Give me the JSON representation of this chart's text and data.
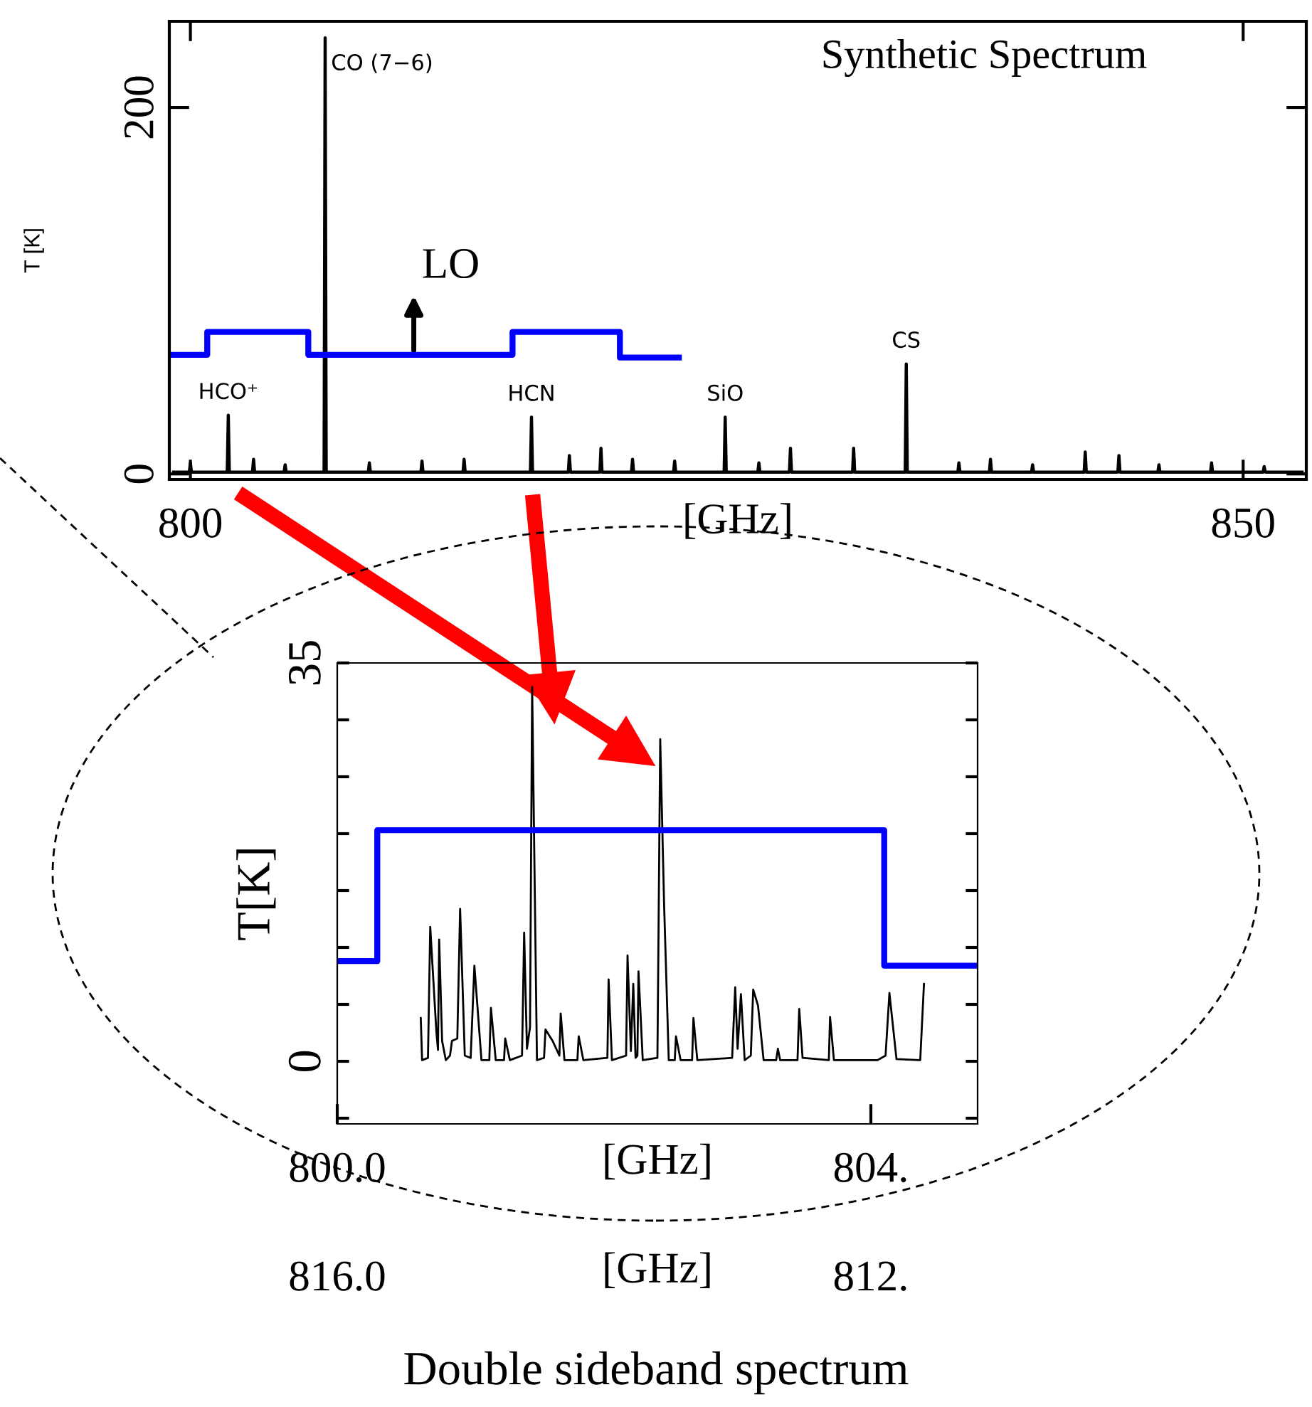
{
  "chart_data": [
    {
      "type": "line",
      "title": "Synthetic Spectrum",
      "xlabel": "[GHz]",
      "ylabel": "T [K]",
      "series": [
        {
          "color": "#000000",
          "x": [
            799.2,
            799.95,
            800.0,
            800.05,
            801.75,
            801.8,
            801.85,
            802.95,
            803.0,
            803.05,
            804.45,
            804.5,
            804.55,
            806.35,
            806.4,
            806.45,
            808.45,
            808.5,
            808.55,
            810.95,
            811.0,
            811.05,
            812.95,
            813.0,
            813.05,
            816.15,
            816.2,
            816.25,
            817.95,
            818.0,
            818.05,
            819.45,
            819.5,
            819.55,
            820.95,
            821.0,
            821.05,
            822.95,
            823.0,
            823.05,
            825.35,
            825.4,
            825.45,
            826.95,
            827.0,
            827.05,
            828.45,
            828.5,
            828.55,
            831.45,
            831.5,
            831.55,
            833.95,
            834.0,
            834.05,
            836.45,
            836.5,
            836.55,
            837.95,
            838.0,
            838.05,
            839.95,
            840.0,
            840.05,
            842.45,
            842.5,
            842.55,
            844.05,
            844.1,
            844.15,
            845.95,
            846.0,
            846.05,
            848.45,
            848.5,
            848.55,
            850.95,
            851.0,
            851.05,
            852.8
          ],
          "values": [
            1,
            1,
            6,
            1,
            1,
            32,
            1,
            1,
            8,
            1,
            1,
            5,
            1,
            1,
            238,
            1,
            1,
            6,
            1,
            1,
            7,
            1,
            1,
            8,
            1,
            1,
            31,
            1,
            1,
            10,
            1,
            1,
            14,
            1,
            1,
            8,
            1,
            1,
            7,
            1,
            1,
            31,
            1,
            1,
            6,
            1,
            1,
            14,
            1,
            1,
            14,
            1,
            1,
            60,
            1,
            1,
            6,
            1,
            1,
            8,
            1,
            1,
            5,
            1,
            1,
            12,
            1,
            1,
            10,
            1,
            1,
            5,
            1,
            1,
            6,
            1,
            1,
            4,
            1,
            1
          ]
        },
        {
          "type": "step",
          "color": "#0000ff",
          "x": [
            799.1,
            800.8,
            805.6,
            815.3,
            820.4,
            823.2
          ],
          "values": [
            65,
            77.5,
            65,
            77.5,
            63.5,
            63.5
          ]
        }
      ],
      "xlim": [
        799,
        853
      ],
      "xticks": [
        800,
        850
      ],
      "ylim": [
        -3,
        247
      ],
      "yticks": [
        0,
        200
      ],
      "annotations": [
        {
          "text": "CO (7−6)",
          "x": 806.4,
          "y": 238
        },
        {
          "text": "HCO⁺",
          "x": 801.8,
          "y": 32
        },
        {
          "text": "HCN",
          "x": 816.2,
          "y": 31
        },
        {
          "text": "SiO",
          "x": 825.4,
          "y": 31
        },
        {
          "text": "CS",
          "x": 834.0,
          "y": 60
        },
        "LO"
      ],
      "legend": false,
      "grid": false
    },
    {
      "type": "line",
      "title": "Double sideband spectrum",
      "xlabel": "[GHz]",
      "x2label": "[GHz]",
      "ylabel": "T[K]",
      "series": [
        {
          "color": "#000000",
          "x": [
            800.626,
            800.636,
            800.68,
            800.697,
            800.743,
            800.755,
            800.764,
            800.786,
            800.814,
            800.845,
            800.86,
            800.9,
            800.921,
            800.956,
            801.0,
            801.028,
            801.081,
            801.14,
            801.152,
            801.188,
            801.25,
            801.259,
            801.294,
            801.385,
            801.401,
            801.422,
            801.445,
            801.461,
            801.497,
            801.55,
            801.561,
            801.614,
            801.665,
            801.675,
            801.703,
            801.8,
            801.81,
            801.845,
            802.025,
            802.034,
            802.059,
            802.165,
            802.176,
            802.201,
            802.219,
            802.236,
            802.25,
            802.258,
            802.29,
            802.4,
            802.421,
            802.45,
            802.485,
            802.53,
            802.539,
            802.574,
            802.66,
            802.67,
            802.699,
            802.96,
            802.983,
            803.001,
            803.026,
            803.054,
            803.1,
            803.118,
            803.154,
            803.196,
            803.29,
            803.303,
            803.32,
            803.45,
            803.463,
            803.488,
            803.685,
            803.694,
            803.723,
            804.05,
            804.11,
            804.139,
            804.192,
            804.37,
            804.398
          ],
          "values": [
            3.8,
            0.1,
            0.3,
            11.8,
            2.6,
            1.0,
            10.7,
            1.8,
            0.1,
            0.5,
            1.8,
            2.0,
            13.4,
            0.5,
            0.3,
            8.4,
            0.1,
            0.1,
            4.7,
            0.1,
            0.1,
            2.0,
            0.1,
            0.5,
            11.3,
            1.1,
            3.0,
            32.9,
            0.1,
            0.3,
            2.8,
            1.8,
            0.5,
            4.2,
            0.1,
            0.1,
            2.2,
            0.1,
            0.3,
            7.2,
            0.1,
            0.5,
            9.3,
            0.9,
            6.8,
            0.3,
            0.5,
            7.9,
            0.1,
            0.3,
            28.3,
            13.8,
            0.1,
            0.1,
            2.2,
            0.1,
            0.1,
            3.8,
            0.1,
            0.3,
            6.5,
            1.1,
            5.9,
            0.1,
            0.5,
            6.3,
            4.9,
            0.1,
            0.1,
            1.1,
            0.1,
            0.1,
            4.6,
            0.3,
            0.1,
            3.9,
            0.1,
            0.1,
            0.5,
            6.0,
            0.2,
            0.1,
            6.8
          ]
        },
        {
          "type": "step",
          "color": "#0000ff",
          "x": [
            800.0,
            800.3,
            804.1,
            804.8
          ],
          "values": [
            8.8,
            20.3,
            8.4,
            8.4
          ]
        }
      ],
      "xlim": [
        800.0,
        804.8
      ],
      "xticks": [
        {
          "value": 800.0,
          "label": "800.0"
        },
        {
          "value": 804,
          "label": "804."
        }
      ],
      "x2lim": [
        816.0,
        811.2
      ],
      "x2ticks": [
        {
          "value": 816.0,
          "label": "816.0"
        },
        {
          "value": 812,
          "label": "812."
        }
      ],
      "ylim": [
        -5.5,
        35
      ],
      "yticks": [
        {
          "value": -5,
          "label": null
        },
        0,
        {
          "value": 5,
          "label": null
        },
        {
          "value": 10,
          "label": null
        },
        {
          "value": 15,
          "label": null
        },
        {
          "value": 20,
          "label": null
        },
        {
          "value": 25,
          "label": null
        },
        {
          "value": 30,
          "label": null
        },
        35
      ],
      "legend": false,
      "grid": false
    }
  ]
}
